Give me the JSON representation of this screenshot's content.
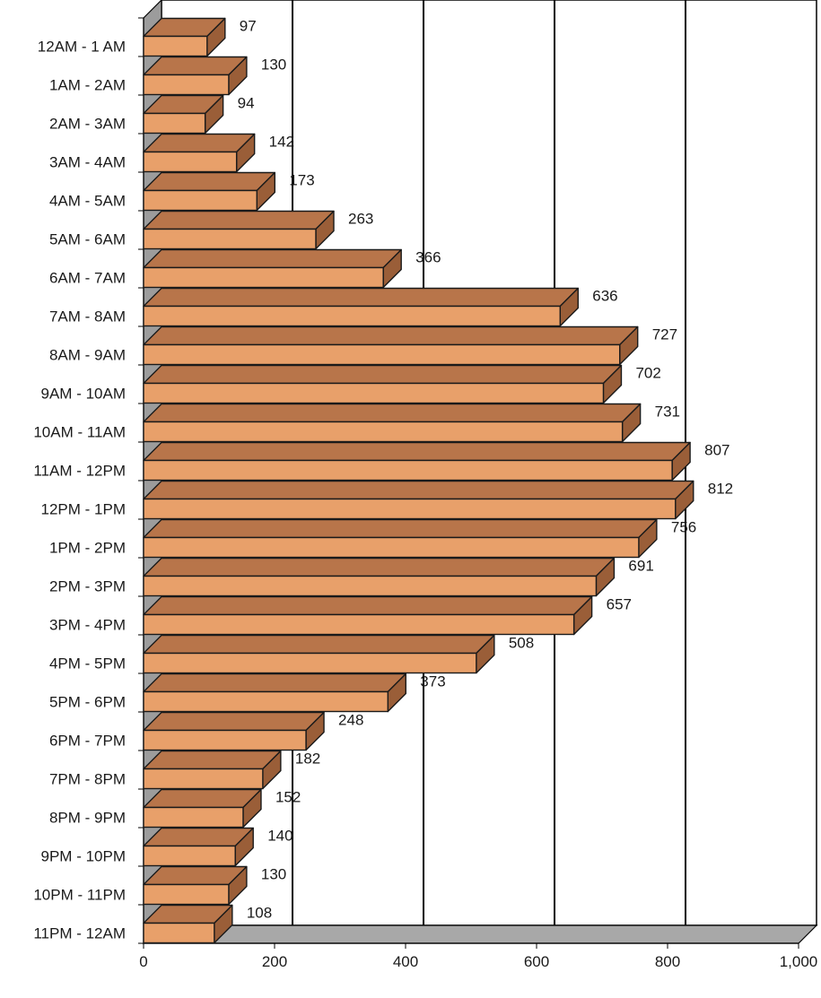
{
  "chart_data": {
    "type": "bar",
    "orientation": "horizontal",
    "three_d": true,
    "categories": [
      "12AM - 1 AM",
      "1AM - 2AM",
      "2AM - 3AM",
      "3AM - 4AM",
      "4AM - 5AM",
      "5AM - 6AM",
      "6AM - 7AM",
      "7AM - 8AM",
      "8AM - 9AM",
      "9AM - 10AM",
      "10AM - 11AM",
      "11AM - 12PM",
      "12PM - 1PM",
      "1PM - 2PM",
      "2PM - 3PM",
      "3PM - 4PM",
      "4PM - 5PM",
      "5PM - 6PM",
      "6PM - 7PM",
      "7PM - 8PM",
      "8PM - 9PM",
      "9PM - 10PM",
      "10PM - 11PM",
      "11PM - 12AM"
    ],
    "values": [
      97,
      130,
      94,
      142,
      173,
      263,
      366,
      636,
      727,
      702,
      731,
      807,
      812,
      756,
      691,
      657,
      508,
      373,
      248,
      182,
      152,
      140,
      130,
      108
    ],
    "value_labels": [
      "97",
      "130",
      "94",
      "142",
      "173",
      "263",
      "366",
      "636",
      "727",
      "702",
      "731",
      "807",
      "812",
      "756",
      "691",
      "657",
      "508",
      "373",
      "248",
      "182",
      "152",
      "140",
      "130",
      "108"
    ],
    "xlim": [
      0,
      1000
    ],
    "xticks": [
      0,
      200,
      400,
      600,
      800,
      1000
    ],
    "xtick_labels": [
      "0",
      "200",
      "400",
      "600",
      "800",
      "1,000"
    ],
    "title": "",
    "xlabel": "",
    "ylabel": "",
    "grid": "vertical",
    "legend": "none",
    "colors": {
      "bar_front": "#E8A06A",
      "bar_top": "#B8754A",
      "bar_side": "#9A5E38",
      "bar_edge": "#1a1a1a",
      "wall": "#9c9c9c",
      "floor": "#a8a8a8",
      "grid": "#000000"
    }
  }
}
